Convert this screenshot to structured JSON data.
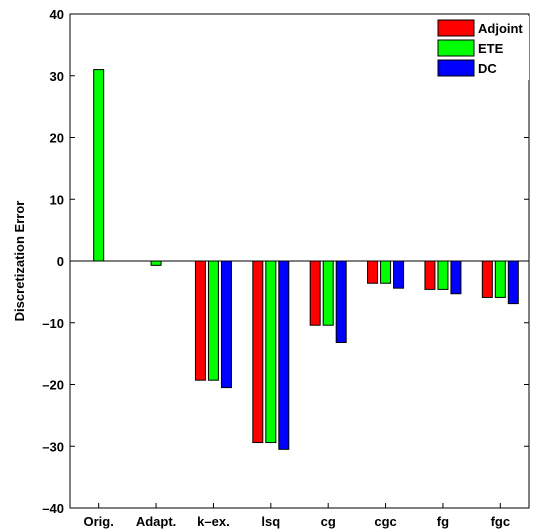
{
  "chart_data": {
    "type": "bar",
    "title": "",
    "xlabel": "",
    "ylabel": "Discretization Error",
    "ylim": [
      -40,
      40
    ],
    "yticks": [
      -40,
      -30,
      -20,
      -10,
      0,
      10,
      20,
      30,
      40
    ],
    "grid": false,
    "legend_position": "top-right",
    "categories": [
      "Orig.",
      "Adapt.",
      "k–ex.",
      "lsq",
      "cg",
      "cgc",
      "fg",
      "fgc"
    ],
    "series": [
      {
        "name": "Adjoint",
        "color": "#ff0000",
        "values": [
          null,
          null,
          -19.3,
          -29.4,
          -10.4,
          -3.6,
          -4.6,
          -5.9
        ]
      },
      {
        "name": "ETE",
        "color": "#00ff00",
        "values": [
          31.0,
          -0.7,
          -19.3,
          -29.4,
          -10.4,
          -3.6,
          -4.6,
          -5.9
        ]
      },
      {
        "name": "DC",
        "color": "#0000ff",
        "values": [
          null,
          null,
          -20.5,
          -30.5,
          -13.2,
          -4.4,
          -5.3,
          -6.9
        ]
      }
    ]
  }
}
